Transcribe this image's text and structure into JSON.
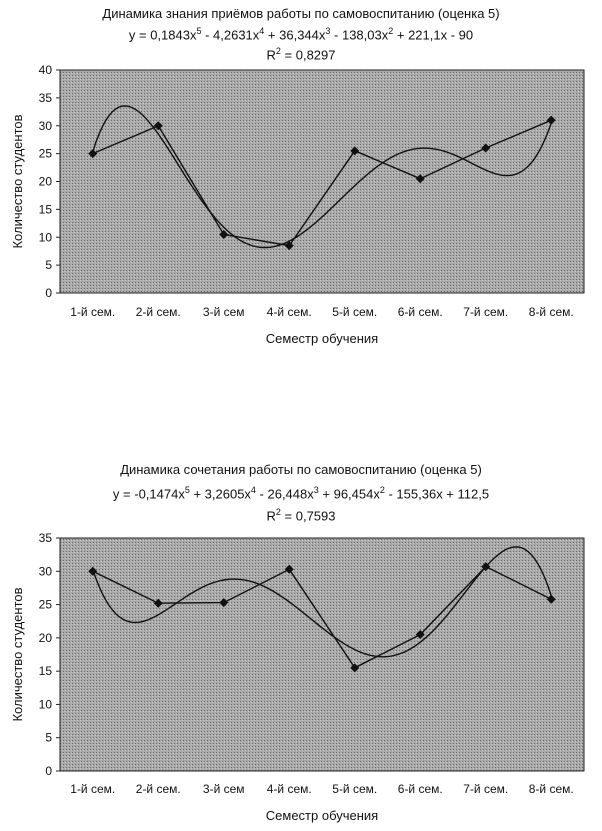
{
  "chart_data": [
    {
      "type": "line",
      "title": "Динамика знания приёмов работы по самовоспитанию (оценка 5)",
      "equation_parts": [
        "y = 0,1843x",
        "5",
        " - 4,2631x",
        "4",
        " + 36,344x",
        "3",
        " - 138,03x",
        "2",
        " + 221,1x - 90"
      ],
      "r2_parts": [
        "R",
        "2",
        " = 0,8297"
      ],
      "categories": [
        "1-й сем.",
        "2-й сем.",
        "3-й сем",
        "4-й сем.",
        "5-й сем.",
        "6-й сем.",
        "7-й сем.",
        "8-й сем."
      ],
      "series": [
        {
          "values": [
            25,
            30,
            10.5,
            8.5,
            25.5,
            20.5,
            26,
            31
          ]
        }
      ],
      "trendline": {
        "type": "polynomial",
        "coefficients": [
          0.1843,
          -4.2631,
          36.344,
          -138.03,
          221.1,
          -90
        ]
      },
      "xlabel": "Семестр обучения",
      "ylabel": "Количество студентов",
      "ylim": [
        0,
        40
      ],
      "yticks": [
        "0",
        "5",
        "10",
        "15",
        "20",
        "25",
        "30",
        "35",
        "40"
      ],
      "grid": false,
      "marker": "diamond"
    },
    {
      "type": "line",
      "title": "Динамика сочетания работы по самовоспитанию (оценка 5)",
      "equation_parts": [
        "y = -0,1474x",
        "5",
        " + 3,2605x",
        "4",
        " - 26,448x",
        "3",
        " + 96,454x",
        "2",
        " - 155,36x + 112,5"
      ],
      "r2_parts": [
        "R",
        "2",
        " = 0,7593"
      ],
      "categories": [
        "1-й сем.",
        "2-й сем.",
        "3-й сем",
        "4-й сем.",
        "5-й сем.",
        "6-й сем.",
        "7-й сем.",
        "8-й сем."
      ],
      "series": [
        {
          "values": [
            30,
            25.2,
            25.3,
            30.3,
            15.5,
            20.5,
            30.7,
            25.8
          ]
        }
      ],
      "trendline": {
        "type": "polynomial",
        "coefficients": [
          -0.1474,
          3.2605,
          -26.448,
          96.454,
          -155.36,
          112.5
        ]
      },
      "xlabel": "Семестр обучения",
      "ylabel": "Количество студентов",
      "ylim": [
        0,
        35
      ],
      "yticks": [
        "0",
        "5",
        "10",
        "15",
        "20",
        "25",
        "30",
        "35"
      ],
      "grid": false,
      "marker": "diamond"
    }
  ],
  "colors": {
    "plot_fill": "#a9a9a9",
    "line": "#111111",
    "text": "#111111"
  }
}
